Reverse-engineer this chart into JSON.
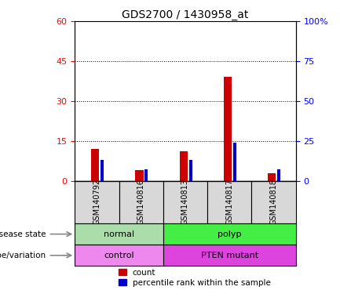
{
  "title": "GDS2700 / 1430958_at",
  "samples": [
    "GSM140792",
    "GSM140816",
    "GSM140813",
    "GSM140817",
    "GSM140818"
  ],
  "counts": [
    12,
    4,
    11,
    39,
    3
  ],
  "percentiles": [
    13,
    7,
    13,
    24,
    7
  ],
  "ylim_left": [
    0,
    60
  ],
  "ylim_right": [
    0,
    100
  ],
  "yticks_left": [
    0,
    15,
    30,
    45,
    60
  ],
  "yticks_right": [
    0,
    25,
    50,
    75,
    100
  ],
  "ytick_labels_left": [
    "0",
    "15",
    "30",
    "45",
    "60"
  ],
  "ytick_labels_right": [
    "0",
    "25",
    "50",
    "75",
    "100%"
  ],
  "bar_color_count": "#cc0000",
  "bar_color_pct": "#0000cc",
  "disease_state": [
    {
      "label": "normal",
      "span": [
        0,
        1
      ],
      "color": "#aaddaa"
    },
    {
      "label": "polyp",
      "span": [
        2,
        4
      ],
      "color": "#44ee44"
    }
  ],
  "genotype": [
    {
      "label": "control",
      "span": [
        0,
        1
      ],
      "color": "#ee88ee"
    },
    {
      "label": "PTEN mutant",
      "span": [
        2,
        4
      ],
      "color": "#dd44dd"
    }
  ],
  "disease_label": "disease state",
  "genotype_label": "genotype/variation",
  "legend_count": "count",
  "legend_pct": "percentile rank within the sample",
  "sample_box_color": "#d8d8d8"
}
